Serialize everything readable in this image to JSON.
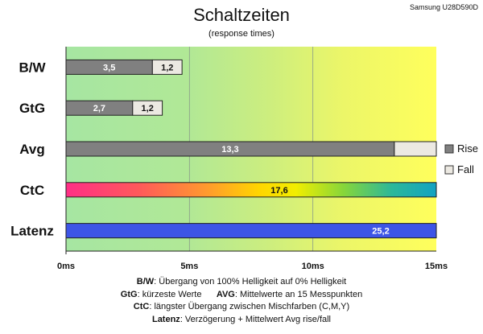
{
  "title": "Schaltzeiten",
  "subtitle": "(response times)",
  "model": "Samsung U28D590D",
  "chart_data": {
    "type": "bar",
    "orientation": "horizontal",
    "stacked": true,
    "unit": "ms",
    "xlim": [
      0,
      15
    ],
    "xticks": [
      "0ms",
      "5ms",
      "10ms",
      "15ms"
    ],
    "grid": true,
    "legend_position": "right",
    "categories": [
      "B/W",
      "GtG",
      "Avg",
      "CtC",
      "Latenz"
    ],
    "series": [
      {
        "name": "Rise",
        "values": [
          3.5,
          2.7,
          13.3,
          null,
          null
        ],
        "labels": [
          "3,5",
          "2,7",
          "13,3",
          "",
          ""
        ],
        "color": "#808080"
      },
      {
        "name": "Fall",
        "values": [
          1.2,
          1.2,
          1.7,
          null,
          null
        ],
        "labels": [
          "1,2",
          "1,2",
          "",
          "",
          ""
        ],
        "color": "#ece9e2"
      }
    ],
    "single_bars": [
      {
        "category": "CtC",
        "value": 17.6,
        "label": "17,6",
        "style": "rainbow"
      },
      {
        "category": "Latenz",
        "value": 25.2,
        "label": "25,2",
        "color": "#3d55e6"
      }
    ]
  },
  "notes": [
    {
      "items": [
        {
          "key": "B/W",
          "text": ":  Übergang von 100% Helligkeit auf 0% Helligkeit"
        }
      ]
    },
    {
      "items": [
        {
          "key": "GtG",
          "text": ": kürzeste  Werte"
        },
        {
          "key": "AVG",
          "text": ":  Mittelwerte  an 15 Messpunkten"
        }
      ]
    },
    {
      "items": [
        {
          "key": "CtC",
          "text": ": längster Übergang  zwischen Mischfarben  (C,M,Y)"
        }
      ]
    },
    {
      "items": [
        {
          "key": "Latenz",
          "text": ": Verzögerung  + Mittelwert  Avg rise/fall"
        }
      ]
    }
  ]
}
